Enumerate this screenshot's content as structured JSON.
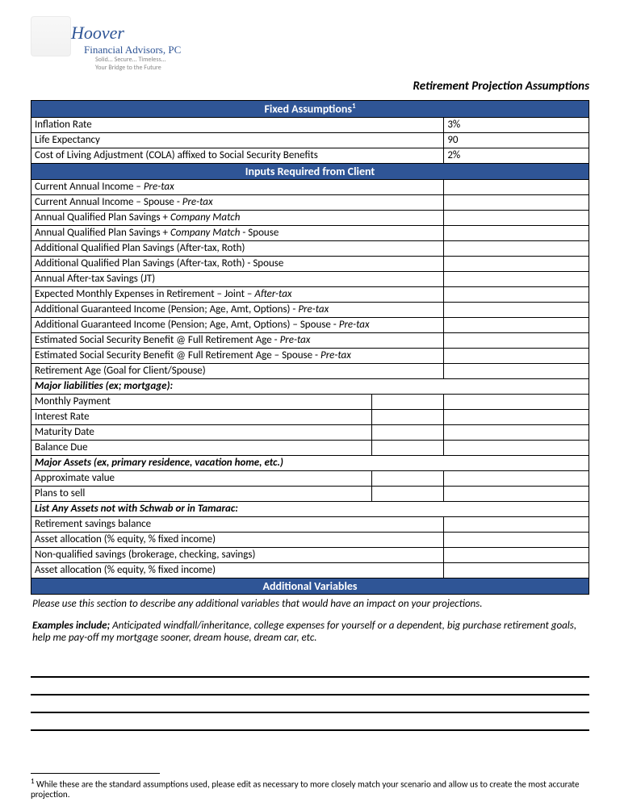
{
  "logo": {
    "main": "Hoover",
    "sub": "Financial Advisors, PC",
    "tag1": "Solid... Secure... Timeless...",
    "tag2": "Your Bridge to the Future"
  },
  "doc_title": "Retirement Projection Assumptions",
  "section1": {
    "header": "Fixed Assumptions",
    "sup": "1",
    "rows": [
      {
        "label": "Inflation Rate",
        "value": "3%"
      },
      {
        "label": "Life Expectancy",
        "value": "90"
      },
      {
        "label": "Cost of Living Adjustment (COLA) affixed to Social Security Benefits",
        "value": "2%"
      }
    ]
  },
  "section2": {
    "header": "Inputs Required from Client",
    "rows": [
      {
        "pre": "Current Annual Income – ",
        "ital": "Pre-tax"
      },
      {
        "pre": "Current Annual Income – Spouse - ",
        "ital": "Pre-tax"
      },
      {
        "pre": "Annual Qualified Plan Savings + ",
        "ital": "Company Match"
      },
      {
        "pre": "Annual Qualified Plan Savings + ",
        "ital": "Company Match",
        "post": " - Spouse"
      },
      {
        "pre": "Additional Qualified Plan Savings (After-tax, Roth)"
      },
      {
        "pre": "Additional Qualified Plan Savings (After-tax, Roth) - Spouse"
      },
      {
        "pre": "Annual After-tax Savings (JT)"
      },
      {
        "pre": "Expected Monthly Expenses in Retirement – Joint – ",
        "ital": "After-tax"
      },
      {
        "pre": "Additional Guaranteed Income (Pension; Age, Amt, Options) - ",
        "ital": "Pre-tax"
      },
      {
        "pre": "Additional Guaranteed Income (Pension; Age, Amt, Options) – Spouse - ",
        "ital": "Pre-tax"
      },
      {
        "pre": "Estimated Social Security Benefit @ Full Retirement Age - ",
        "ital": "Pre-tax"
      },
      {
        "pre": "Estimated Social Security Benefit @ Full Retirement Age – Spouse - ",
        "ital": "Pre-tax"
      },
      {
        "pre": "Retirement Age (Goal for Client/Spouse)"
      }
    ],
    "sub_liabilities": {
      "header": "Major liabilities (ex; mortgage):",
      "rows": [
        "Monthly Payment",
        "Interest Rate",
        "Maturity Date",
        "Balance Due"
      ]
    },
    "sub_assets": {
      "header": "Major Assets (ex, primary residence, vacation home, etc.)",
      "rows": [
        "Approximate value",
        "Plans to sell"
      ]
    },
    "sub_schwab": {
      "header": "List Any Assets not with Schwab or in Tamarac:",
      "rows": [
        "Retirement savings balance",
        "Asset allocation (% equity, % fixed income)",
        "Non-qualified savings (brokerage, checking, savings)",
        "Asset allocation (% equity, % fixed income)"
      ]
    }
  },
  "section3": {
    "header": "Additional Variables",
    "text": "Please use this section to describe any additional variables that would have an impact on your projections.",
    "examples_lead": "Examples include;",
    "examples": " Anticipated windfall/inheritance, college expenses for yourself or a dependent, big purchase retirement goals, help me pay-off my mortgage sooner, dream house, dream car, etc."
  },
  "footnote": {
    "sup": "1",
    "text": " While these are the standard assumptions used, please edit as necessary to more closely match your scenario and allow us to create the most accurate projection."
  },
  "colors": {
    "header_bg": "#2f5596",
    "header_fg": "#ffffff",
    "border": "#000000"
  }
}
